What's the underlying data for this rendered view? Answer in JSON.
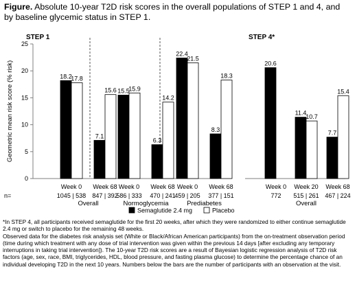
{
  "figure": {
    "label": "Figure.",
    "caption": "Absolute 10-year T2D risk scores in the overall populations of STEP 1 and 4, and by baseline glycemic status in STEP 1."
  },
  "chart_data": [
    {
      "type": "bar",
      "title": "STEP 1",
      "ylabel": "Geometric mean risk score (% risk)",
      "ylim": [
        0,
        25
      ],
      "yticks": [
        0,
        5,
        10,
        15,
        20,
        25
      ],
      "groups": [
        {
          "name": "Overall",
          "categories": [
            "Week 0",
            "Week 68"
          ],
          "n": [
            "1045 | 538",
            "847 | 392"
          ],
          "series": [
            {
              "name": "Semaglutide 2.4 mg",
              "values": [
                18.2,
                7.1
              ]
            },
            {
              "name": "Placebo",
              "values": [
                17.8,
                15.6
              ]
            }
          ]
        },
        {
          "name": "Normoglycemia",
          "categories": [
            "Week 0",
            "Week 68"
          ],
          "n": [
            "586 | 333",
            "470 | 241"
          ],
          "series": [
            {
              "name": "Semaglutide 2.4 mg",
              "values": [
                15.5,
                6.3
              ]
            },
            {
              "name": "Placebo",
              "values": [
                15.9,
                14.2
              ]
            }
          ]
        },
        {
          "name": "Prediabetes",
          "categories": [
            "Week 0",
            "Week 68"
          ],
          "n": [
            "459 | 205",
            "377 | 151"
          ],
          "series": [
            {
              "name": "Semaglutide 2.4 mg",
              "values": [
                22.4,
                8.3
              ]
            },
            {
              "name": "Placebo",
              "values": [
                21.5,
                18.3
              ]
            }
          ]
        }
      ]
    },
    {
      "type": "bar",
      "title": "STEP 4*",
      "ylim": [
        0,
        25
      ],
      "groups": [
        {
          "name": "Overall",
          "categories": [
            "Week 0",
            "Week 20",
            "Week 68"
          ],
          "n": [
            "772",
            "515 | 261",
            "467 | 224"
          ],
          "series": [
            {
              "name": "Semaglutide 2.4 mg",
              "values": [
                20.6,
                11.4,
                7.7
              ]
            },
            {
              "name": "Placebo",
              "values": [
                null,
                10.7,
                15.4
              ]
            }
          ]
        }
      ]
    }
  ],
  "n_label": "n=",
  "legend": {
    "items": [
      {
        "label": "Semaglutide 2.4 mg",
        "color": "#000000"
      },
      {
        "label": "Placebo",
        "color": "#ffffff"
      }
    ]
  },
  "colors": {
    "semaglutide": "#000000",
    "placebo": "#ffffff",
    "divider": "#555555",
    "axis": "#7f7f7f"
  },
  "footnote": {
    "p1": "*In STEP 4, all participants received semaglutide for the first 20 weeks, after which they were randomized to either continue semaglutide 2.4 mg or switch to placebo for the remaining 48 weeks.",
    "p2": "Observed data for the diabetes risk analysis set (White or Black/African American participants) from the on-treatment observation period (time during which treatment with any dose of trial intervention was given within the previous 14 days [after excluding any temporary interruptions in taking trial intervention]). The 10-year T2D risk scores are a result of Bayesian logistic regression analysis of T2D risk factors (age, sex, race, BMI, triglycerides, HDL, blood pressure, and fasting plasma glucose) to determine the percentage chance of an individual developing T2D in the next 10 years. Numbers below the bars are the number of participants with an observation at the visit."
  }
}
